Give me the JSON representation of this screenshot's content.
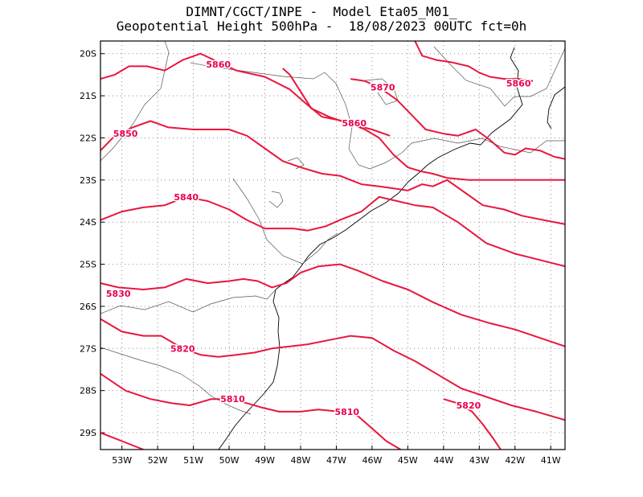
{
  "header": {
    "title_line1": "DIMNT/CGCT/INPE -  Model Eta05_M01_",
    "title_line2": "Geopotential Height 500hPa -  18/08/2023 00UTC fct=0h"
  },
  "map": {
    "lon_range": [
      -53.6,
      -40.6
    ],
    "lat_range": [
      -29.4,
      -19.7
    ],
    "lat_ticks": [
      {
        "value": -20,
        "label": "20S"
      },
      {
        "value": -21,
        "label": "21S"
      },
      {
        "value": -22,
        "label": "22S"
      },
      {
        "value": -23,
        "label": "23S"
      },
      {
        "value": -24,
        "label": "24S"
      },
      {
        "value": -25,
        "label": "25S"
      },
      {
        "value": -26,
        "label": "26S"
      },
      {
        "value": -27,
        "label": "27S"
      },
      {
        "value": -28,
        "label": "28S"
      },
      {
        "value": -29,
        "label": "29S"
      }
    ],
    "lon_ticks": [
      {
        "value": -53,
        "label": "53W"
      },
      {
        "value": -52,
        "label": "52W"
      },
      {
        "value": -51,
        "label": "51W"
      },
      {
        "value": -50,
        "label": "50W"
      },
      {
        "value": -49,
        "label": "49W"
      },
      {
        "value": -48,
        "label": "48W"
      },
      {
        "value": -47,
        "label": "47W"
      },
      {
        "value": -46,
        "label": "46W"
      },
      {
        "value": -45,
        "label": "45W"
      },
      {
        "value": -44,
        "label": "44W"
      },
      {
        "value": -43,
        "label": "43W"
      },
      {
        "value": -42,
        "label": "42W"
      },
      {
        "value": -41,
        "label": "41W"
      }
    ],
    "grid": "dotted",
    "contour_color": "#e8173c",
    "contour_label_color": "#e8004e",
    "coast_color": "#000000",
    "border_color": "#555555",
    "contours": [
      {
        "label": "5870",
        "label_pos": [
          -45.7,
          -20.8
        ],
        "points": [
          [
            -46.6,
            -20.6
          ],
          [
            -46.2,
            -20.65
          ],
          [
            -45.8,
            -20.8
          ],
          [
            -45.3,
            -21.1
          ],
          [
            -44.9,
            -21.45
          ],
          [
            -44.5,
            -21.8
          ],
          [
            -44.0,
            -21.9
          ],
          [
            -43.6,
            -21.95
          ],
          [
            -43.1,
            -21.8
          ],
          [
            -42.7,
            -22.05
          ],
          [
            -42.3,
            -22.35
          ],
          [
            -42.0,
            -22.4
          ],
          [
            -41.7,
            -22.25
          ],
          [
            -41.3,
            -22.3
          ],
          [
            -40.9,
            -22.45
          ],
          [
            -40.6,
            -22.5
          ]
        ]
      },
      {
        "label": "5860",
        "label_pos": [
          -50.3,
          -20.25
        ],
        "points": [
          [
            -53.6,
            -20.6
          ],
          [
            -53.2,
            -20.5
          ],
          [
            -52.8,
            -20.3
          ],
          [
            -52.3,
            -20.3
          ],
          [
            -51.8,
            -20.4
          ],
          [
            -51.3,
            -20.15
          ],
          [
            -50.8,
            -20.0
          ],
          [
            -50.3,
            -20.2
          ],
          [
            -49.8,
            -20.4
          ],
          [
            -49.0,
            -20.55
          ],
          [
            -48.3,
            -20.85
          ],
          [
            -47.9,
            -21.15
          ],
          [
            -47.4,
            -21.5
          ],
          [
            -46.8,
            -21.6
          ],
          [
            -46.2,
            -21.8
          ],
          [
            -45.8,
            -22.0
          ],
          [
            -45.4,
            -22.4
          ],
          [
            -45.0,
            -22.7
          ],
          [
            -44.6,
            -22.8
          ],
          [
            -44.3,
            -22.85
          ],
          [
            -43.9,
            -22.95
          ],
          [
            -43.3,
            -23.0
          ],
          [
            -42.7,
            -23.0
          ],
          [
            -42.0,
            -23.0
          ],
          [
            -41.3,
            -23.0
          ],
          [
            -40.6,
            -23.0
          ]
        ]
      },
      {
        "label": "5860",
        "label_pos": [
          -46.5,
          -21.65
        ],
        "points": [
          [
            -48.5,
            -20.35
          ],
          [
            -48.3,
            -20.5
          ],
          [
            -48.0,
            -20.9
          ],
          [
            -47.7,
            -21.3
          ],
          [
            -47.2,
            -21.5
          ],
          [
            -46.7,
            -21.65
          ],
          [
            -46.0,
            -21.8
          ],
          [
            -45.5,
            -21.95
          ]
        ]
      },
      {
        "label": "5860",
        "label_pos": [
          -41.9,
          -20.7
        ],
        "points": [
          [
            -44.8,
            -19.7
          ],
          [
            -44.6,
            -20.05
          ],
          [
            -44.2,
            -20.15
          ],
          [
            -43.8,
            -20.2
          ],
          [
            -43.3,
            -20.3
          ],
          [
            -43.0,
            -20.45
          ],
          [
            -42.7,
            -20.55
          ],
          [
            -42.3,
            -20.6
          ],
          [
            -41.9,
            -20.6
          ],
          [
            -41.5,
            -20.65
          ]
        ]
      },
      {
        "label": "5850",
        "label_pos": [
          -52.9,
          -21.9
        ],
        "points": [
          [
            -53.6,
            -22.3
          ],
          [
            -53.2,
            -21.95
          ],
          [
            -52.7,
            -21.75
          ],
          [
            -52.2,
            -21.6
          ],
          [
            -51.7,
            -21.75
          ],
          [
            -51.0,
            -21.8
          ],
          [
            -50.5,
            -21.8
          ],
          [
            -50.0,
            -21.8
          ],
          [
            -49.5,
            -21.95
          ],
          [
            -49.0,
            -22.25
          ],
          [
            -48.5,
            -22.55
          ],
          [
            -48.0,
            -22.7
          ],
          [
            -47.4,
            -22.85
          ],
          [
            -46.9,
            -22.9
          ],
          [
            -46.3,
            -23.1
          ],
          [
            -45.8,
            -23.15
          ],
          [
            -45.4,
            -23.2
          ],
          [
            -45.0,
            -23.25
          ],
          [
            -44.6,
            -23.1
          ],
          [
            -44.3,
            -23.15
          ],
          [
            -43.9,
            -23.0
          ],
          [
            -43.4,
            -23.3
          ],
          [
            -42.9,
            -23.6
          ],
          [
            -42.3,
            -23.7
          ],
          [
            -41.8,
            -23.85
          ],
          [
            -41.2,
            -23.95
          ],
          [
            -40.6,
            -24.05
          ]
        ]
      },
      {
        "label": "5840",
        "label_pos": [
          -51.2,
          -23.4
        ],
        "points": [
          [
            -53.6,
            -23.95
          ],
          [
            -53.0,
            -23.75
          ],
          [
            -52.4,
            -23.65
          ],
          [
            -51.8,
            -23.6
          ],
          [
            -51.2,
            -23.4
          ],
          [
            -50.6,
            -23.5
          ],
          [
            -50.0,
            -23.7
          ],
          [
            -49.5,
            -23.95
          ],
          [
            -49.0,
            -24.15
          ],
          [
            -48.5,
            -24.15
          ],
          [
            -48.2,
            -24.15
          ],
          [
            -47.8,
            -24.2
          ],
          [
            -47.3,
            -24.1
          ],
          [
            -46.9,
            -23.95
          ],
          [
            -46.3,
            -23.75
          ],
          [
            -45.8,
            -23.4
          ],
          [
            -45.3,
            -23.5
          ],
          [
            -44.8,
            -23.6
          ],
          [
            -44.3,
            -23.65
          ],
          [
            -43.6,
            -24.0
          ],
          [
            -42.8,
            -24.5
          ],
          [
            -42.0,
            -24.75
          ],
          [
            -41.3,
            -24.9
          ],
          [
            -40.6,
            -25.05
          ]
        ]
      },
      {
        "label": "5830",
        "label_pos": [
          -53.1,
          -25.7
        ],
        "points": [
          [
            -53.6,
            -25.45
          ],
          [
            -53.1,
            -25.55
          ],
          [
            -52.4,
            -25.6
          ],
          [
            -51.8,
            -25.55
          ],
          [
            -51.2,
            -25.35
          ],
          [
            -50.6,
            -25.45
          ],
          [
            -50.0,
            -25.4
          ],
          [
            -49.6,
            -25.35
          ],
          [
            -49.2,
            -25.4
          ],
          [
            -48.8,
            -25.55
          ],
          [
            -48.4,
            -25.45
          ],
          [
            -48.0,
            -25.2
          ],
          [
            -47.5,
            -25.05
          ],
          [
            -46.9,
            -25.0
          ],
          [
            -46.4,
            -25.15
          ],
          [
            -45.7,
            -25.4
          ],
          [
            -45.0,
            -25.6
          ],
          [
            -44.3,
            -25.9
          ],
          [
            -43.5,
            -26.2
          ],
          [
            -42.7,
            -26.4
          ],
          [
            -42.0,
            -26.55
          ],
          [
            -41.3,
            -26.75
          ],
          [
            -40.6,
            -26.95
          ]
        ]
      },
      {
        "label": "5820",
        "label_pos": [
          -51.3,
          -27.0
        ],
        "points": [
          [
            -53.6,
            -26.3
          ],
          [
            -53.0,
            -26.6
          ],
          [
            -52.4,
            -26.7
          ],
          [
            -51.9,
            -26.7
          ],
          [
            -51.3,
            -27.0
          ],
          [
            -50.8,
            -27.15
          ],
          [
            -50.3,
            -27.2
          ],
          [
            -49.8,
            -27.15
          ],
          [
            -49.3,
            -27.1
          ],
          [
            -48.8,
            -27.0
          ],
          [
            -48.3,
            -26.95
          ],
          [
            -47.8,
            -26.9
          ],
          [
            -47.2,
            -26.8
          ],
          [
            -46.6,
            -26.7
          ],
          [
            -46.0,
            -26.75
          ],
          [
            -45.4,
            -27.05
          ],
          [
            -44.8,
            -27.3
          ],
          [
            -44.2,
            -27.6
          ],
          [
            -43.5,
            -27.95
          ],
          [
            -42.8,
            -28.15
          ],
          [
            -42.1,
            -28.35
          ],
          [
            -41.4,
            -28.5
          ],
          [
            -40.6,
            -28.7
          ]
        ]
      },
      {
        "label": "5820",
        "label_pos": [
          -43.3,
          -28.35
        ],
        "points": [
          [
            -44.0,
            -28.2
          ],
          [
            -43.6,
            -28.3
          ],
          [
            -43.2,
            -28.5
          ],
          [
            -42.9,
            -28.8
          ],
          [
            -42.6,
            -29.15
          ],
          [
            -42.4,
            -29.4
          ]
        ]
      },
      {
        "label": "5810",
        "label_pos": [
          -49.9,
          -28.2
        ],
        "points": [
          [
            -53.6,
            -27.6
          ],
          [
            -52.9,
            -28.0
          ],
          [
            -52.2,
            -28.2
          ],
          [
            -51.6,
            -28.3
          ],
          [
            -51.1,
            -28.35
          ],
          [
            -50.5,
            -28.2
          ],
          [
            -49.9,
            -28.2
          ],
          [
            -49.5,
            -28.3
          ],
          [
            -49.1,
            -28.4
          ],
          [
            -48.6,
            -28.5
          ],
          [
            -48.0,
            -28.5
          ],
          [
            -47.5,
            -28.45
          ],
          [
            -46.9,
            -28.5
          ],
          [
            -46.4,
            -28.6
          ],
          [
            -46.0,
            -28.9
          ],
          [
            -45.6,
            -29.2
          ],
          [
            -45.2,
            -29.4
          ]
        ]
      },
      {
        "label": "5810",
        "label_pos": [
          -46.7,
          -28.5
        ],
        "points": [
          [
            -53.6,
            -29.0
          ],
          [
            -53.0,
            -29.2
          ],
          [
            -52.4,
            -29.4
          ]
        ]
      }
    ]
  }
}
